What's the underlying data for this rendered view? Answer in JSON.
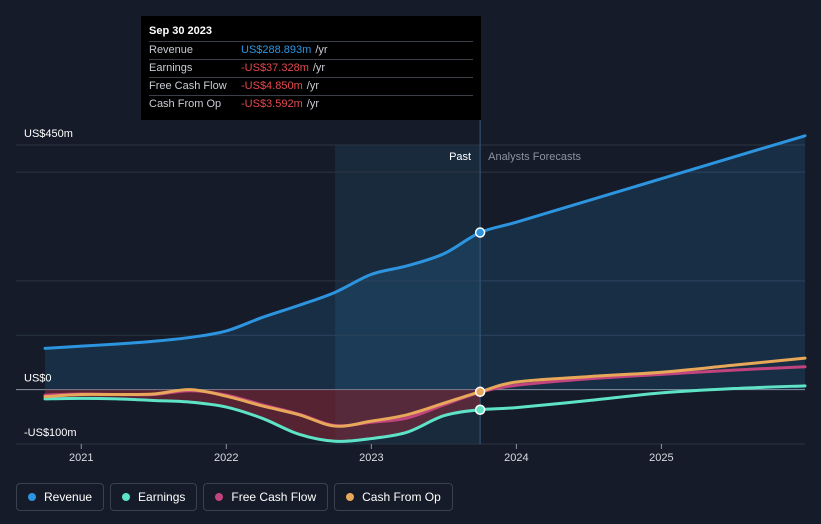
{
  "tooltip": {
    "date": "Sep 30 2023",
    "rows": [
      {
        "label": "Revenue",
        "value": "US$288.893m",
        "unit": "/yr",
        "color": "#2d95e0"
      },
      {
        "label": "Earnings",
        "value": "-US$37.328m",
        "unit": "/yr",
        "color": "#e5484d"
      },
      {
        "label": "Free Cash Flow",
        "value": "-US$4.850m",
        "unit": "/yr",
        "color": "#e5484d"
      },
      {
        "label": "Cash From Op",
        "value": "-US$3.592m",
        "unit": "/yr",
        "color": "#e5484d"
      }
    ]
  },
  "sections": {
    "past": "Past",
    "forecast": "Analysts Forecasts"
  },
  "legend": [
    {
      "label": "Revenue",
      "color": "#2d95e0"
    },
    {
      "label": "Earnings",
      "color": "#5ee3c7"
    },
    {
      "label": "Free Cash Flow",
      "color": "#c2447f"
    },
    {
      "label": "Cash From Op",
      "color": "#e8a85a"
    }
  ],
  "chart_data": {
    "type": "line",
    "ylim": [
      -100,
      450
    ],
    "y_tick_labels": [
      "US$450m",
      "US$0",
      "-US$100m"
    ],
    "y_tick_values": [
      450,
      0,
      -100
    ],
    "x_tick_labels": [
      "2021",
      "2022",
      "2023",
      "2024",
      "2025"
    ],
    "x_tick_values": [
      2021,
      2022,
      2023,
      2024,
      2025
    ],
    "xlim": [
      2020.55,
      2025.99
    ],
    "past_forecast_boundary": 2023.75,
    "highlight_start": 2022.75,
    "series": [
      {
        "name": "Revenue",
        "color": "#2d95e0",
        "x": [
          2020.75,
          2021.0,
          2021.25,
          2021.5,
          2021.75,
          2022.0,
          2022.25,
          2022.5,
          2022.75,
          2023.0,
          2023.25,
          2023.5,
          2023.75,
          2024.0,
          2024.5,
          2025.0,
          2025.5,
          2025.99
        ],
        "y": [
          76,
          80,
          84,
          89,
          96,
          108,
          133,
          155,
          179,
          212,
          228,
          250,
          289,
          308,
          348,
          388,
          428,
          467
        ]
      },
      {
        "name": "Earnings",
        "color": "#5ee3c7",
        "x": [
          2020.75,
          2021.0,
          2021.25,
          2021.5,
          2021.75,
          2022.0,
          2022.25,
          2022.5,
          2022.75,
          2023.0,
          2023.25,
          2023.5,
          2023.75,
          2024.0,
          2024.5,
          2025.0,
          2025.5,
          2025.99
        ],
        "y": [
          -17,
          -16,
          -17,
          -20,
          -23,
          -32,
          -53,
          -82,
          -95,
          -90,
          -78,
          -48,
          -37,
          -33,
          -20,
          -6,
          2,
          7
        ]
      },
      {
        "name": "Free Cash Flow",
        "color": "#c2447f",
        "x": [
          2020.75,
          2021.0,
          2021.25,
          2021.5,
          2021.75,
          2022.0,
          2022.25,
          2022.5,
          2022.75,
          2023.0,
          2023.25,
          2023.5,
          2023.75,
          2024.0,
          2024.5,
          2025.0,
          2025.5,
          2025.99
        ],
        "y": [
          -10,
          -8,
          -9,
          -9,
          -2,
          -10,
          -28,
          -45,
          -66,
          -60,
          -52,
          -28,
          -5,
          8,
          20,
          28,
          36,
          42
        ]
      },
      {
        "name": "Cash From Op",
        "color": "#e8a85a",
        "x": [
          2020.75,
          2021.0,
          2021.25,
          2021.5,
          2021.75,
          2022.0,
          2022.25,
          2022.5,
          2022.75,
          2023.0,
          2023.25,
          2023.5,
          2023.75,
          2024.0,
          2024.5,
          2025.0,
          2025.5,
          2025.99
        ],
        "y": [
          -13,
          -9,
          -9,
          -8,
          0,
          -12,
          -30,
          -46,
          -67,
          -58,
          -46,
          -25,
          -4,
          14,
          24,
          32,
          45,
          58
        ]
      }
    ]
  }
}
